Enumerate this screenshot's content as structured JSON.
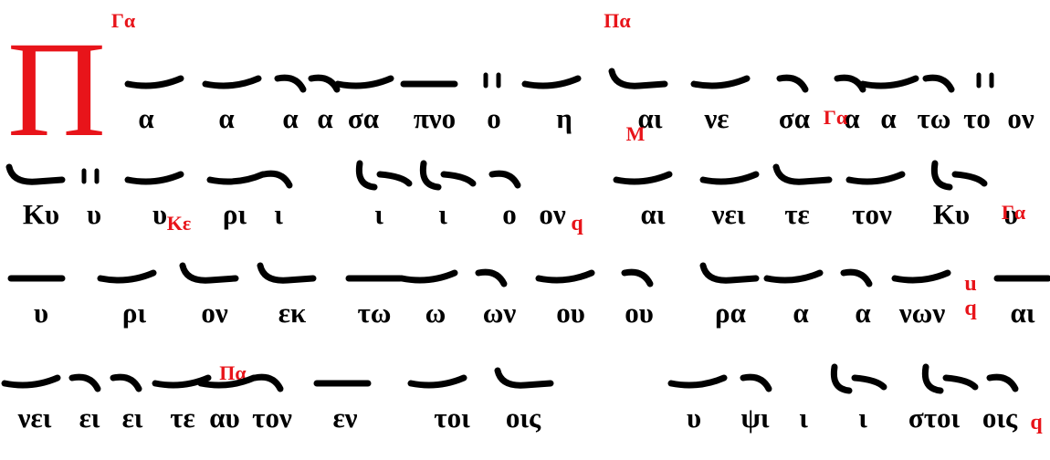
{
  "initial": "Π",
  "lines": [
    {
      "syllables": [
        "α",
        "α",
        "α",
        "α",
        "σα",
        "πνο",
        "ο",
        "η",
        "αι",
        "νε",
        "σα",
        "α",
        "α",
        "τω",
        "το",
        "ον"
      ],
      "marks": [
        "Γα",
        "Πα"
      ]
    },
    {
      "syllables": [
        "Κυ",
        "υ",
        "υ",
        "ρι",
        "ι",
        "ι",
        "ι",
        "ο",
        "ον",
        "αι",
        "νει",
        "τε",
        "τον",
        "Κυ",
        "υ"
      ],
      "marks": [
        "Μ",
        "Γα",
        "q"
      ]
    },
    {
      "syllables": [
        "υ",
        "ρι",
        "ον",
        "εκ",
        "τω",
        "ω",
        "ων",
        "ου",
        "ου",
        "ρα",
        "α",
        "α",
        "νων",
        "αι"
      ],
      "marks": [
        "Κε",
        "Γα",
        "u",
        "q"
      ]
    },
    {
      "syllables": [
        "νει",
        "ει",
        "ει",
        "τε",
        "αυ",
        "τον",
        "εν",
        "τοι",
        "οις",
        "υ",
        "ψι",
        "ι",
        "ι",
        "στοι",
        "οις"
      ],
      "marks": [
        "Πα",
        "q"
      ]
    }
  ]
}
